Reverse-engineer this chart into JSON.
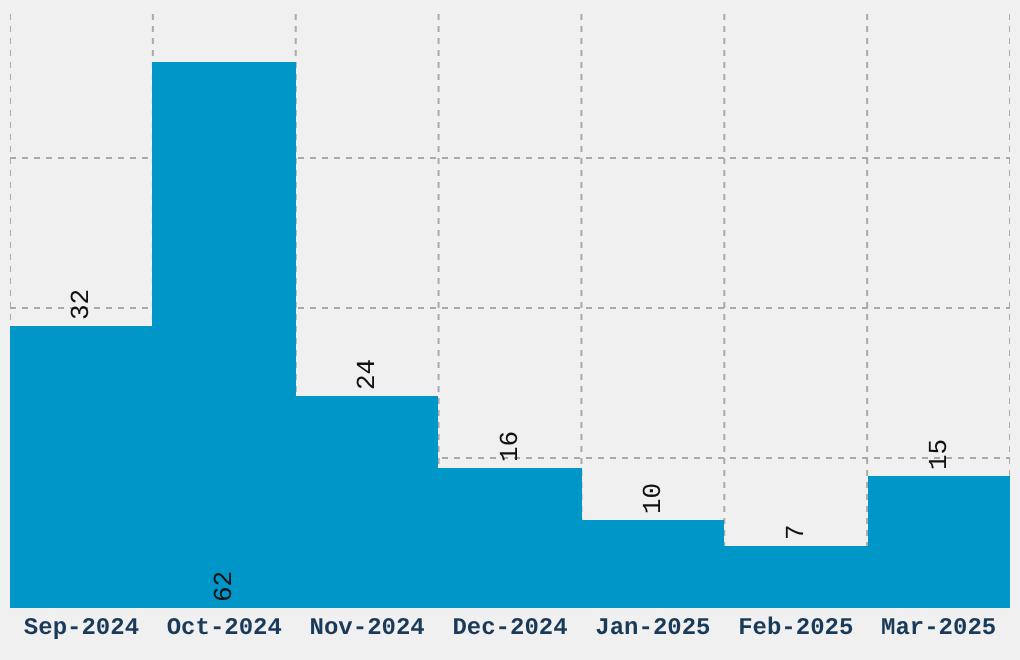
{
  "chart_data": {
    "type": "bar",
    "categories": [
      "Sep-2024",
      "Oct-2024",
      "Nov-2024",
      "Dec-2024",
      "Jan-2025",
      "Feb-2025",
      "Mar-2025"
    ],
    "values": [
      32,
      62,
      24,
      16,
      10,
      7,
      15
    ],
    "color": "#0096c8",
    "grid": true,
    "data_labels": true,
    "tick_labels": "x"
  }
}
